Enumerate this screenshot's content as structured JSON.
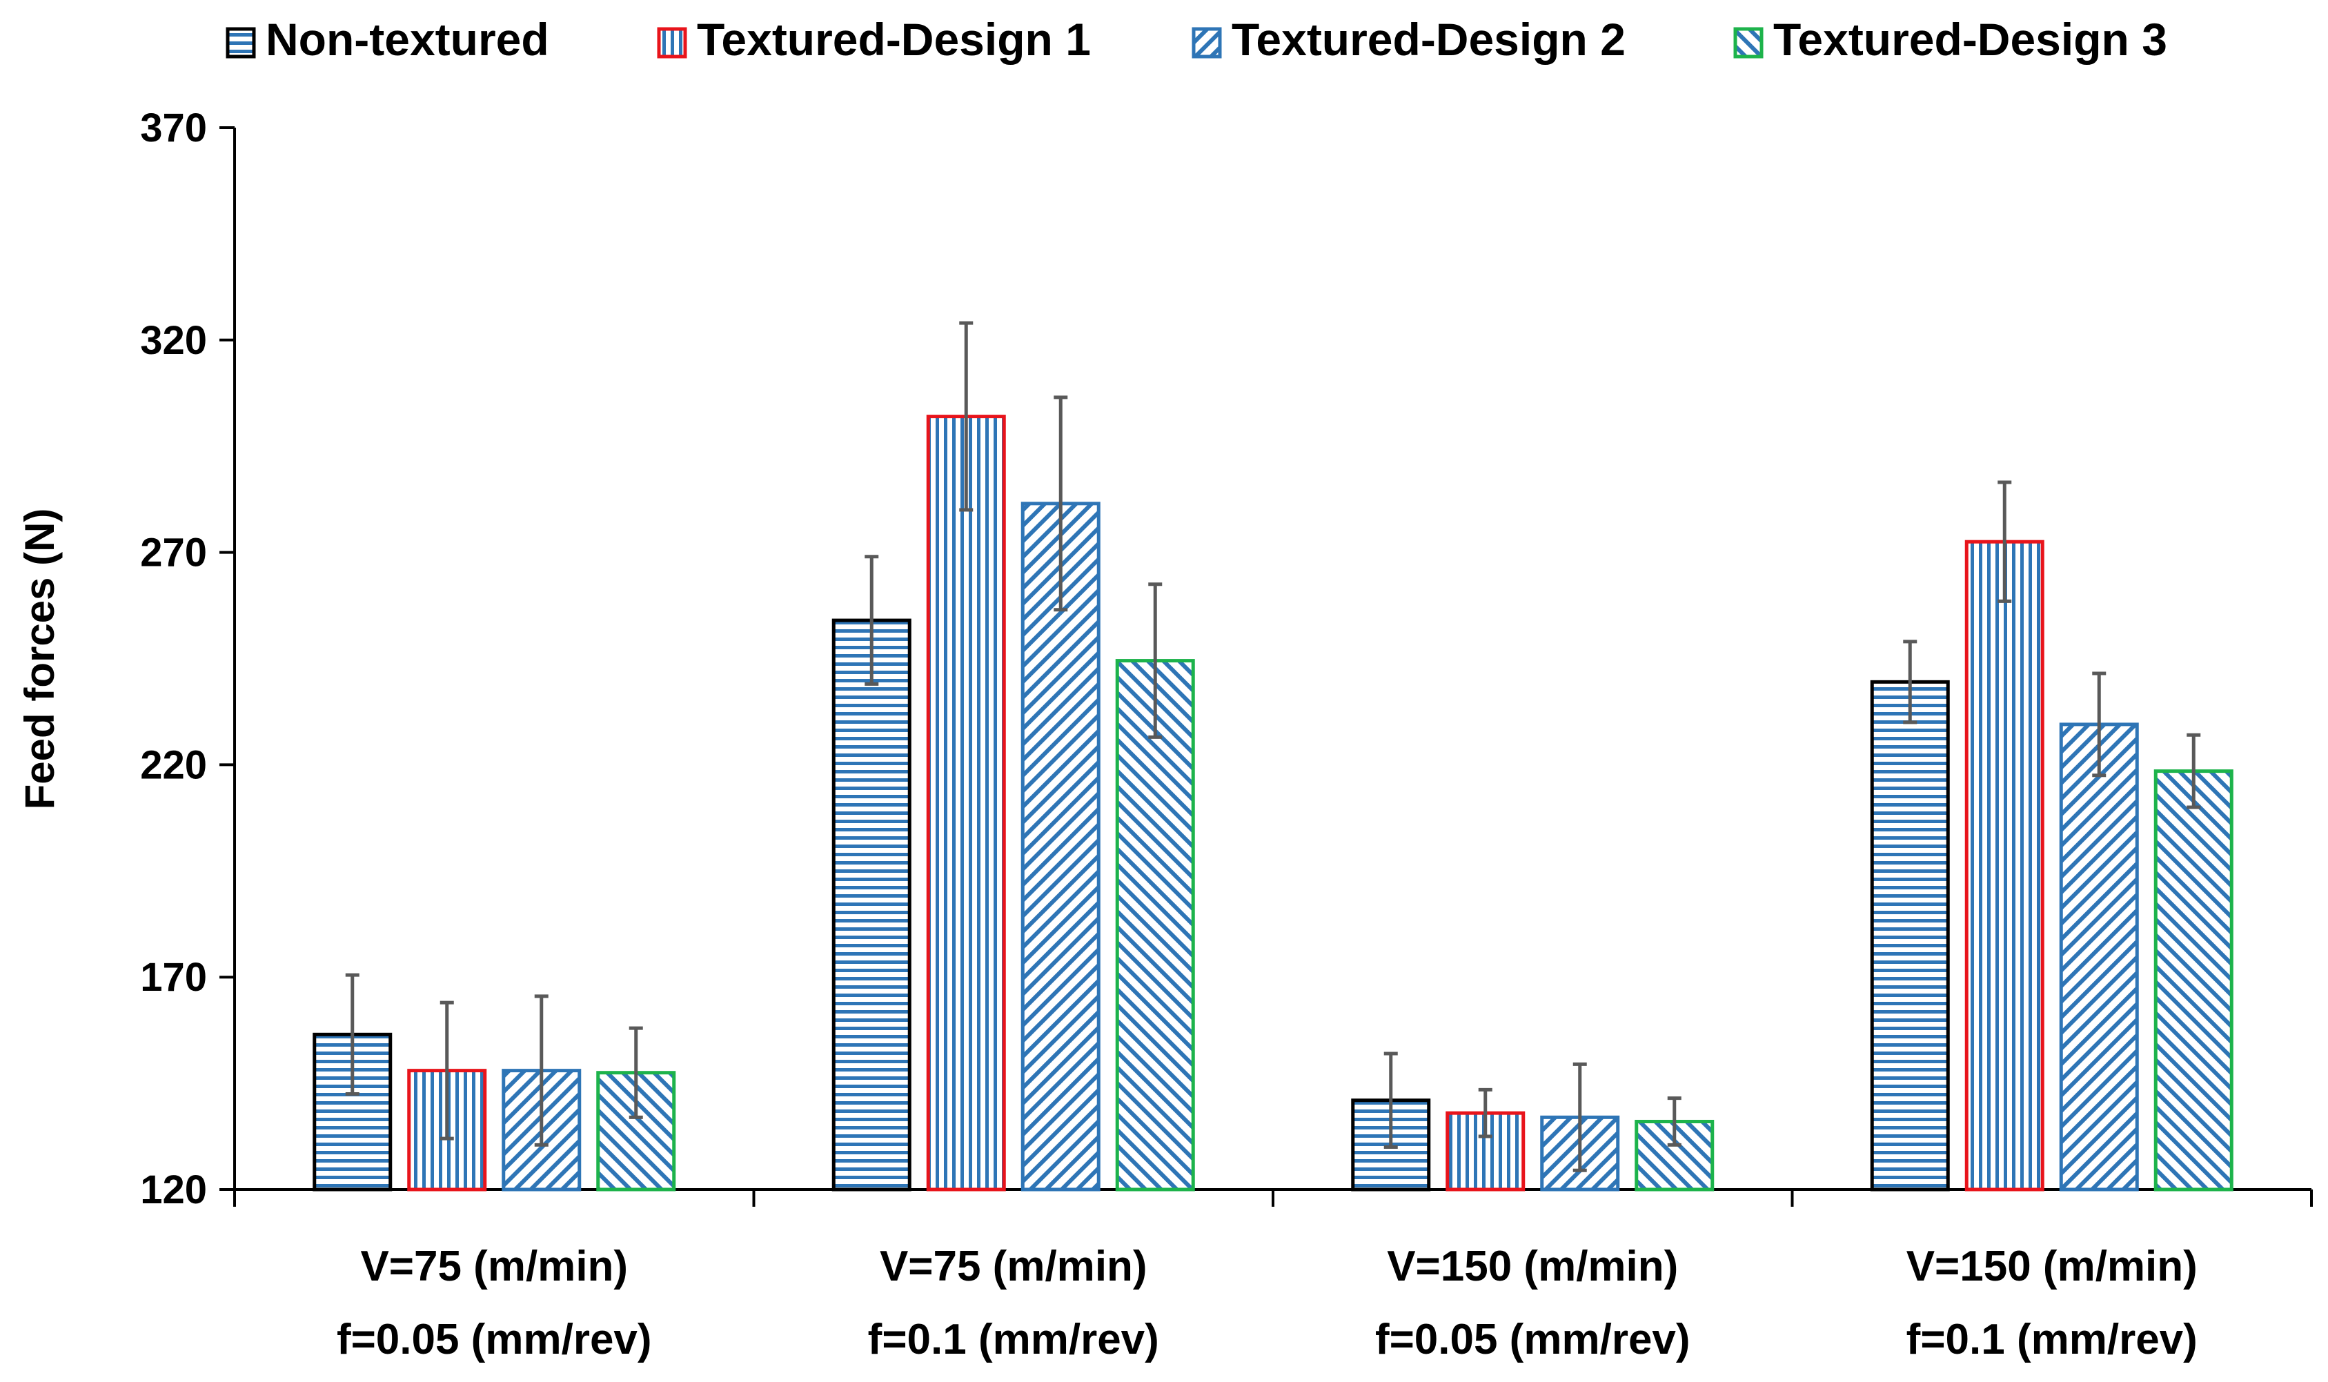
{
  "chart_data": {
    "type": "bar",
    "title": "",
    "xlabel": "",
    "ylabel": "Feed forces (N)",
    "ylim": [
      120,
      370
    ],
    "yticks": [
      120,
      170,
      220,
      270,
      320,
      370
    ],
    "categories": [
      [
        "V=75 (m/min)",
        "f=0.05 (mm/rev)"
      ],
      [
        "V=75 (m/min)",
        "f=0.1 (mm/rev)"
      ],
      [
        "V=150 (m/min)",
        "f=0.05 (mm/rev)"
      ],
      [
        "V=150 (m/min)",
        "f=0.1 (mm/rev)"
      ]
    ],
    "legend_position": "top",
    "series": [
      {
        "name": "Non-textured",
        "pattern": "horizontal",
        "border_color": "#000000",
        "fill_color": "#2E75B6",
        "values": [
          156.5,
          254,
          141,
          239.5
        ],
        "errors": [
          14,
          15,
          11,
          9.5
        ]
      },
      {
        "name": "Textured-Design 1",
        "pattern": "vertical",
        "border_color": "#E8141B",
        "fill_color": "#2E75B6",
        "values": [
          148,
          302,
          138,
          272.5
        ],
        "errors": [
          16,
          22,
          5.5,
          14
        ]
      },
      {
        "name": "Textured-Design 2",
        "pattern": "diagonal-down",
        "border_color": "#2E75B6",
        "fill_color": "#2E75B6",
        "values": [
          148,
          281.5,
          137,
          229.5
        ],
        "errors": [
          17.5,
          25,
          12.5,
          12
        ]
      },
      {
        "name": "Textured-Design 3",
        "pattern": "diagonal-up",
        "border_color": "#1DB34B",
        "fill_color": "#2E75B6",
        "values": [
          147.5,
          244.5,
          136,
          218.5
        ],
        "errors": [
          10.5,
          18,
          5.5,
          8.5
        ]
      }
    ],
    "error_bar_color": "#595959"
  }
}
